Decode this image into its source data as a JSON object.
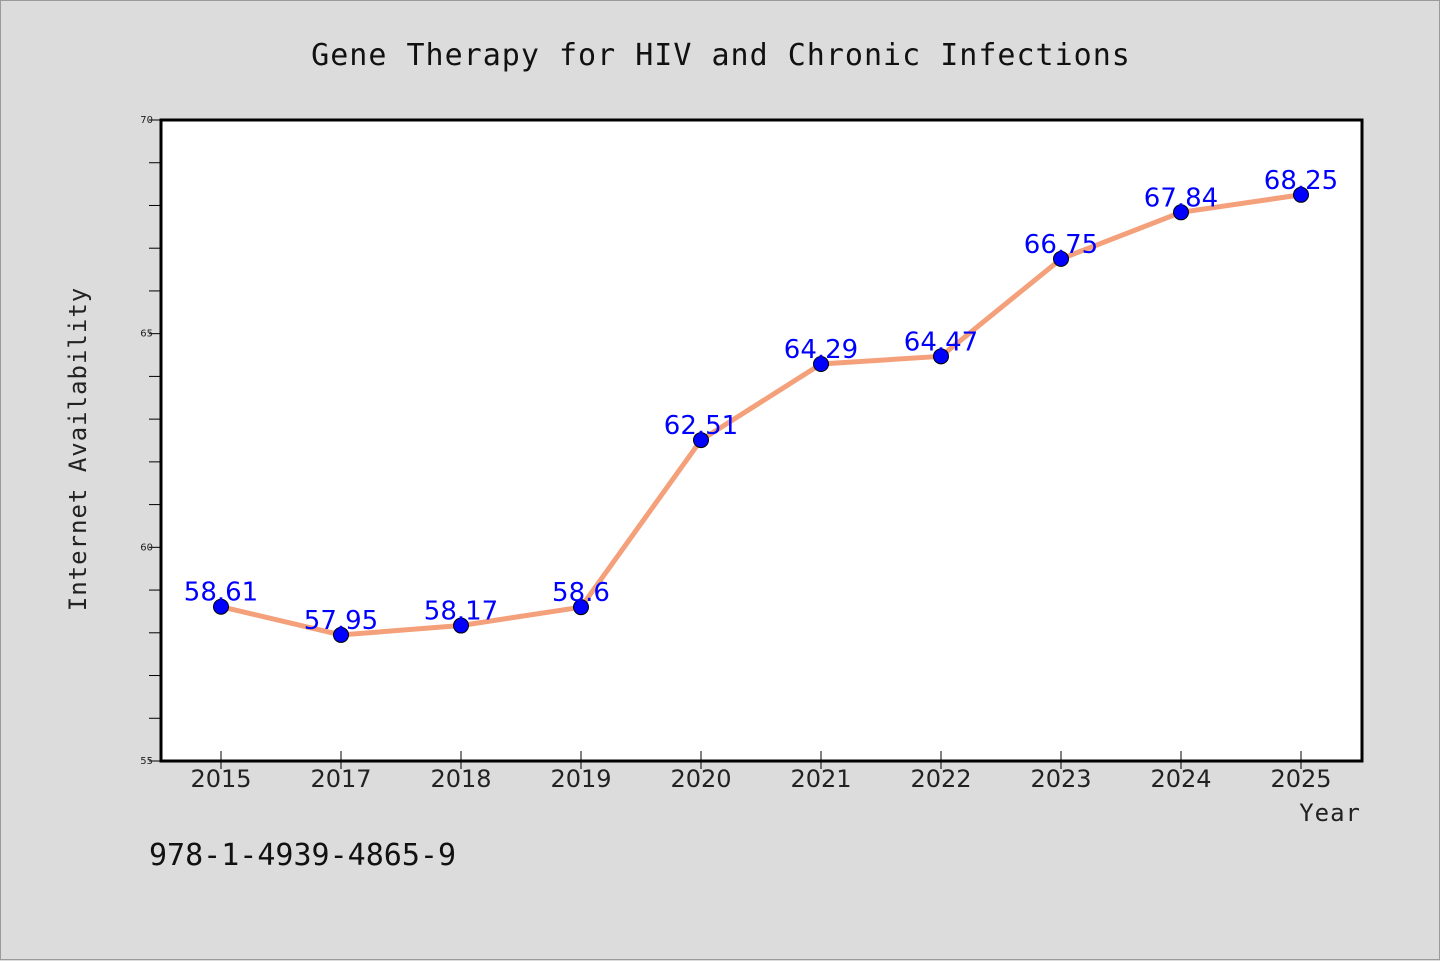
{
  "chart_data": {
    "type": "line",
    "title": "Gene Therapy for HIV and Chronic Infections",
    "xlabel": "Year",
    "ylabel": "Internet Availability",
    "categories": [
      "2015",
      "2017",
      "2018",
      "2019",
      "2020",
      "2021",
      "2022",
      "2023",
      "2024",
      "2025"
    ],
    "values": [
      58.61,
      57.95,
      58.17,
      58.6,
      62.51,
      64.29,
      64.47,
      66.75,
      67.84,
      68.25
    ],
    "data_labels": [
      "58.61",
      "57.95",
      "58.17",
      "58.6",
      "62.51",
      "64.29",
      "64.47",
      "66.75",
      "67.84",
      "68.25"
    ],
    "ylim": [
      55,
      70
    ],
    "yticks": [
      55,
      60,
      65,
      70
    ],
    "ytick_labels": [
      "55",
      "60",
      "65",
      "70"
    ],
    "grid": false,
    "legend": "none",
    "line_color": "#f4a07a",
    "marker_color": "#0000ff",
    "label_color": "#0000ff"
  },
  "annotation": {
    "isbn": "978-1-4939-4865-9"
  }
}
